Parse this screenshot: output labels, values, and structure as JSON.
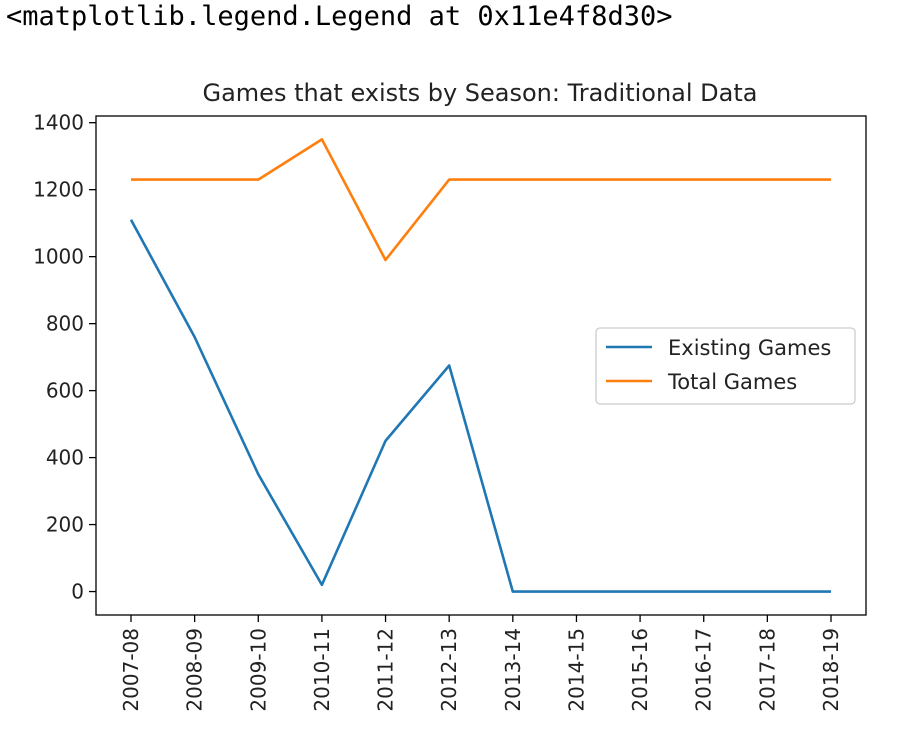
{
  "output_text": "<matplotlib.legend.Legend at 0x11e4f8d30>",
  "chart_data": {
    "type": "line",
    "title": "Games that exists by Season: Traditional Data",
    "xlabel": "",
    "ylabel": "",
    "categories": [
      "2007-08",
      "2008-09",
      "2009-10",
      "2010-11",
      "2011-12",
      "2012-13",
      "2013-14",
      "2014-15",
      "2015-16",
      "2016-17",
      "2017-18",
      "2018-19"
    ],
    "series": [
      {
        "name": "Existing Games",
        "color": "#1f77b4",
        "values": [
          1110,
          760,
          350,
          20,
          450,
          675,
          0,
          0,
          0,
          0,
          0,
          0
        ]
      },
      {
        "name": "Total Games",
        "color": "#ff7f0e",
        "values": [
          1230,
          1230,
          1230,
          1350,
          990,
          1230,
          1230,
          1230,
          1230,
          1230,
          1230,
          1230
        ]
      }
    ],
    "yticks": [
      0,
      200,
      400,
      600,
      800,
      1000,
      1200,
      1400
    ],
    "ylim": [
      -70,
      1420
    ],
    "grid": false,
    "legend_position": "center-right"
  }
}
